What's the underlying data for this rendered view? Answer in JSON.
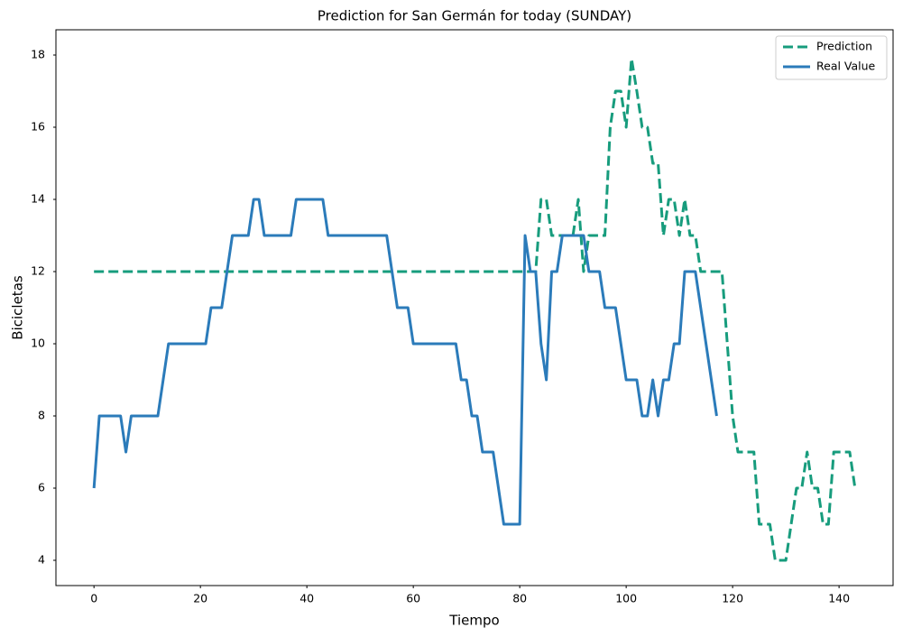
{
  "chart_data": {
    "type": "line",
    "title": "Prediction for San Germán for today (SUNDAY)",
    "x_label": "Tiempo",
    "y_label": "Bicicletas",
    "xlim": [
      -7.15,
      150.15
    ],
    "ylim": [
      3.3,
      18.7
    ],
    "xticks": [
      0,
      20,
      40,
      60,
      80,
      100,
      120,
      140
    ],
    "yticks": [
      4,
      6,
      8,
      10,
      12,
      14,
      16,
      18
    ],
    "grid": false,
    "legend": "upper right",
    "series": [
      {
        "name": "Prediction",
        "color": "#179c7d",
        "dash": true,
        "x": [
          0,
          1,
          2,
          3,
          4,
          5,
          6,
          7,
          8,
          9,
          10,
          11,
          12,
          13,
          14,
          15,
          16,
          17,
          18,
          19,
          20,
          21,
          22,
          23,
          24,
          25,
          26,
          27,
          28,
          29,
          30,
          31,
          32,
          33,
          34,
          35,
          36,
          37,
          38,
          39,
          40,
          41,
          42,
          43,
          44,
          45,
          46,
          47,
          48,
          49,
          50,
          51,
          52,
          53,
          54,
          55,
          56,
          57,
          58,
          59,
          60,
          61,
          62,
          63,
          64,
          65,
          66,
          67,
          68,
          69,
          70,
          71,
          72,
          73,
          74,
          75,
          76,
          77,
          78,
          79,
          80,
          81,
          82,
          83,
          84,
          85,
          86,
          87,
          88,
          89,
          90,
          91,
          92,
          93,
          94,
          95,
          96,
          97,
          98,
          99,
          100,
          101,
          102,
          103,
          104,
          105,
          106,
          107,
          108,
          109,
          110,
          111,
          112,
          113,
          114,
          115,
          116,
          117,
          118,
          119,
          120,
          121,
          122,
          123,
          124,
          125,
          126,
          127,
          128,
          129,
          130,
          131,
          132,
          133,
          134,
          135,
          136,
          137,
          138,
          139,
          140,
          141,
          142,
          143
        ],
        "values": [
          12,
          12,
          12,
          12,
          12,
          12,
          12,
          12,
          12,
          12,
          12,
          12,
          12,
          12,
          12,
          12,
          12,
          12,
          12,
          12,
          12,
          12,
          12,
          12,
          12,
          12,
          12,
          12,
          12,
          12,
          12,
          12,
          12,
          12,
          12,
          12,
          12,
          12,
          12,
          12,
          12,
          12,
          12,
          12,
          12,
          12,
          12,
          12,
          12,
          12,
          12,
          12,
          12,
          12,
          12,
          12,
          12,
          12,
          12,
          12,
          12,
          12,
          12,
          12,
          12,
          12,
          12,
          12,
          12,
          12,
          12,
          12,
          12,
          12,
          12,
          12,
          12,
          12,
          12,
          12,
          12,
          12,
          12,
          12,
          14,
          14,
          13,
          13,
          13,
          13,
          13,
          14,
          12,
          13,
          13,
          13,
          13,
          16,
          17,
          17,
          16,
          17.9,
          17,
          16,
          16,
          15,
          15,
          13,
          14,
          14,
          13,
          14,
          13,
          13,
          12,
          12,
          12,
          12,
          12,
          10,
          8,
          7,
          7,
          7,
          7,
          5,
          5,
          5,
          4,
          4,
          4,
          5,
          6,
          6,
          7,
          6,
          6,
          5,
          5,
          7,
          7,
          7,
          7,
          6
        ]
      },
      {
        "name": "Real Value",
        "color": "#2b7bba",
        "dash": false,
        "x": [
          0,
          1,
          2,
          3,
          4,
          5,
          6,
          7,
          8,
          9,
          10,
          11,
          12,
          13,
          14,
          15,
          16,
          17,
          18,
          19,
          20,
          21,
          22,
          23,
          24,
          25,
          26,
          27,
          28,
          29,
          30,
          31,
          32,
          33,
          34,
          35,
          36,
          37,
          38,
          39,
          40,
          41,
          42,
          43,
          44,
          45,
          46,
          47,
          48,
          49,
          50,
          51,
          52,
          53,
          54,
          55,
          56,
          57,
          58,
          59,
          60,
          61,
          62,
          63,
          64,
          65,
          66,
          67,
          68,
          69,
          70,
          71,
          72,
          73,
          74,
          75,
          76,
          77,
          78,
          79,
          80,
          81,
          82,
          83,
          84,
          85,
          86,
          87,
          88,
          89,
          90,
          91,
          92,
          93,
          94,
          95,
          96,
          97,
          98,
          99,
          100,
          101,
          102,
          103,
          104,
          105,
          106,
          107,
          108,
          109,
          110,
          111,
          112,
          113,
          114,
          115,
          116,
          117
        ],
        "values": [
          6,
          8,
          8,
          8,
          8,
          8,
          7,
          8,
          8,
          8,
          8,
          8,
          8,
          9,
          10,
          10,
          10,
          10,
          10,
          10,
          10,
          10,
          11,
          11,
          11,
          12,
          13,
          13,
          13,
          13,
          14,
          14,
          13,
          13,
          13,
          13,
          13,
          13,
          14,
          14,
          14,
          14,
          14,
          14,
          13,
          13,
          13,
          13,
          13,
          13,
          13,
          13,
          13,
          13,
          13,
          13,
          12,
          11,
          11,
          11,
          10,
          10,
          10,
          10,
          10,
          10,
          10,
          10,
          10,
          9,
          9,
          8,
          8,
          7,
          7,
          7,
          6,
          5,
          5,
          5,
          5,
          13,
          12,
          12,
          10,
          9,
          12,
          12,
          13,
          13,
          13,
          13,
          13,
          12,
          12,
          12,
          11,
          11,
          11,
          10,
          9,
          9,
          9,
          8,
          8,
          9,
          8,
          9,
          9,
          10,
          10,
          12,
          12,
          12,
          11,
          10,
          9,
          8
        ]
      }
    ]
  }
}
